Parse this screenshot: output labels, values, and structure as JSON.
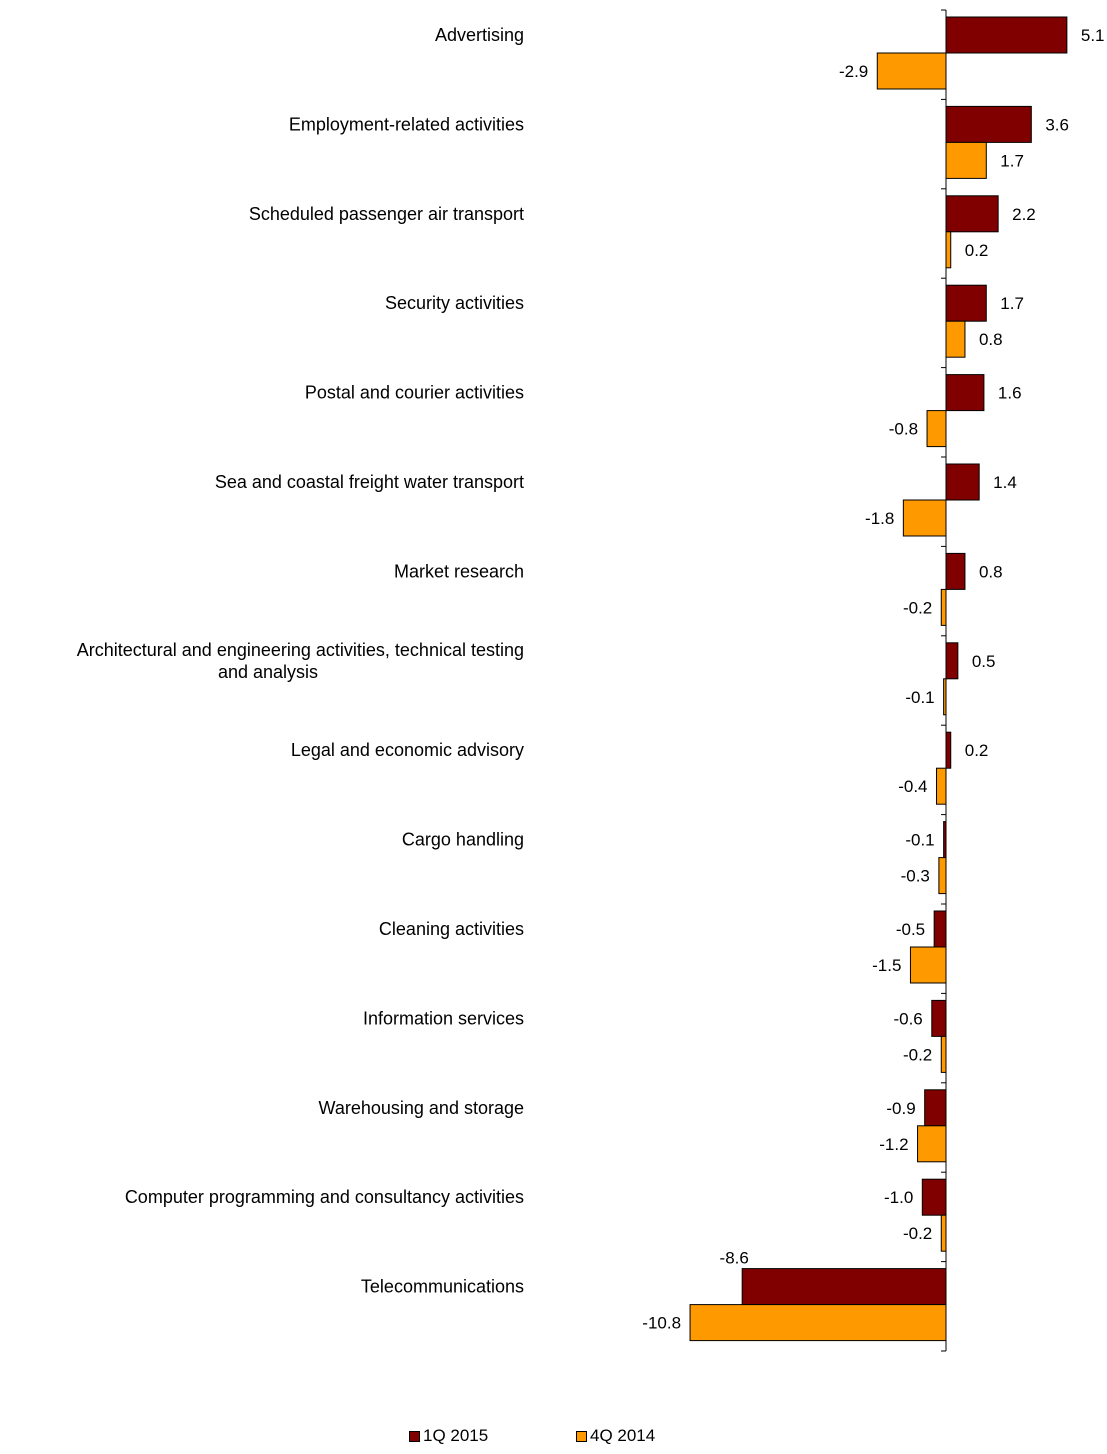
{
  "chart_data": {
    "type": "bar",
    "orientation": "horizontal",
    "categories": [
      "Advertising",
      "Employment-related activities",
      "Scheduled passenger air transport",
      "Security activities",
      "Postal and courier activities",
      "Sea and coastal freight water transport",
      "Market research",
      "Architectural and engineering activities, technical testing and analysis",
      "Legal and economic advisory",
      "Cargo handling",
      "Cleaning activities",
      "Information services",
      "Warehousing and storage",
      "Computer programming and consultancy activities",
      "Telecommunications"
    ],
    "category_lines": [
      [
        "Advertising"
      ],
      [
        "Employment-related activities"
      ],
      [
        "Scheduled passenger air transport"
      ],
      [
        "Security activities"
      ],
      [
        "Postal and courier activities"
      ],
      [
        "Sea and coastal freight water transport"
      ],
      [
        "Market research"
      ],
      [
        "Architectural and engineering activities, technical testing",
        "and analysis"
      ],
      [
        "Legal and economic advisory"
      ],
      [
        "Cargo handling"
      ],
      [
        "Cleaning activities"
      ],
      [
        "Information services"
      ],
      [
        "Warehousing and storage"
      ],
      [
        "Computer programming and consultancy activities"
      ],
      [
        "Telecommunications"
      ]
    ],
    "series": [
      {
        "name": "1Q 2015",
        "color": "#800000",
        "values": [
          5.1,
          3.6,
          2.2,
          1.7,
          1.6,
          1.4,
          0.8,
          0.5,
          0.2,
          -0.1,
          -0.5,
          -0.6,
          -0.9,
          -1.0,
          -8.6
        ],
        "labels": [
          "5.1",
          "3.6",
          "2.2",
          "1.7",
          "1.6",
          "1.4",
          "0.8",
          "0.5",
          "0.2",
          "-0.1",
          "-0.5",
          "-0.6",
          "-0.9",
          "-1.0",
          "-8.6"
        ]
      },
      {
        "name": "4Q 2014",
        "color": "#FF9900",
        "values": [
          -2.9,
          1.7,
          0.2,
          0.8,
          -0.8,
          -1.8,
          -0.2,
          -0.1,
          -0.4,
          -0.3,
          -1.5,
          -0.2,
          -1.2,
          -0.2,
          -10.8
        ],
        "labels": [
          "-2.9",
          "1.7",
          "0.2",
          "0.8",
          "-0.8",
          "-1.8",
          "-0.2",
          "-0.1",
          "-0.4",
          "-0.3",
          "-1.5",
          "-0.2",
          "-1.2",
          "-0.2",
          "-10.8"
        ]
      }
    ],
    "title": "",
    "xlabel": "",
    "ylabel": "",
    "grid": false,
    "legend_position": "bottom"
  }
}
